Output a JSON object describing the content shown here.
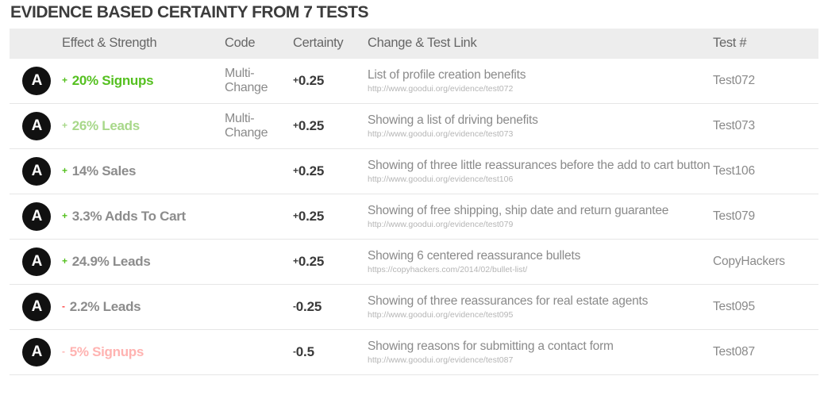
{
  "title": "EVIDENCE BASED CERTAINTY FROM 7 TESTS",
  "colors": {
    "green_strong": "#55c020",
    "green_light": "#a8d88a",
    "red": "#ff4a4a",
    "pink": "#ffb3b1",
    "gray_text": "#8c8c8c",
    "dark_text": "#3a3a3a",
    "header_bg": "#ededed"
  },
  "table": {
    "headers": {
      "effect": "Effect & Strength",
      "code": "Code",
      "certainty": "Certainty",
      "change": "Change & Test Link",
      "test": "Test #"
    },
    "rows": [
      {
        "badge": "A",
        "sign": "+",
        "sign_color": "#55c020",
        "effect": "20% Signups",
        "effect_color": "#55c020",
        "code": "Multi-Change",
        "certainty_sign": "+",
        "certainty_value": "0.25",
        "change": "List of profile creation benefits",
        "url": "http://www.goodui.org/evidence/test072",
        "test": "Test072"
      },
      {
        "badge": "A",
        "sign": "+",
        "sign_color": "#a8d88a",
        "effect": "26% Leads",
        "effect_color": "#a8d88a",
        "code": "Multi-Change",
        "certainty_sign": "+",
        "certainty_value": "0.25",
        "change": "Showing a list of driving benefits",
        "url": "http://www.goodui.org/evidence/test073",
        "test": "Test073"
      },
      {
        "badge": "A",
        "sign": "+",
        "sign_color": "#55c020",
        "effect": "14% Sales",
        "effect_color": "#8c8c8c",
        "code": "",
        "certainty_sign": "+",
        "certainty_value": "0.25",
        "change": "Showing of three little reassurances before the add to cart button",
        "url": "http://www.goodui.org/evidence/test106",
        "test": "Test106"
      },
      {
        "badge": "A",
        "sign": "+",
        "sign_color": "#55c020",
        "effect": "3.3% Adds To Cart",
        "effect_color": "#8c8c8c",
        "code": "",
        "certainty_sign": "+",
        "certainty_value": "0.25",
        "change": "Showing of free shipping, ship date and return guarantee",
        "url": "http://www.goodui.org/evidence/test079",
        "test": "Test079"
      },
      {
        "badge": "A",
        "sign": "+",
        "sign_color": "#55c020",
        "effect": "24.9% Leads",
        "effect_color": "#8c8c8c",
        "code": "",
        "certainty_sign": "+",
        "certainty_value": "0.25",
        "change": "Showing 6 centered reassurance bullets",
        "url": "https://copyhackers.com/2014/02/bullet-list/",
        "test": "CopyHackers"
      },
      {
        "badge": "A",
        "sign": "-",
        "sign_color": "#ff4a4a",
        "effect": "2.2% Leads",
        "effect_color": "#8c8c8c",
        "code": "",
        "certainty_sign": "-",
        "certainty_value": "0.25",
        "change": "Showing of three reassurances for real estate agents",
        "url": "http://www.goodui.org/evidence/test095",
        "test": "Test095"
      },
      {
        "badge": "A",
        "sign": "-",
        "sign_color": "#ffb3b1",
        "effect": "5% Signups",
        "effect_color": "#ffb3b1",
        "code": "",
        "certainty_sign": "-",
        "certainty_value": "0.5",
        "change": "Showing reasons for submitting a contact form",
        "url": "http://www.goodui.org/evidence/test087",
        "test": "Test087"
      }
    ]
  }
}
